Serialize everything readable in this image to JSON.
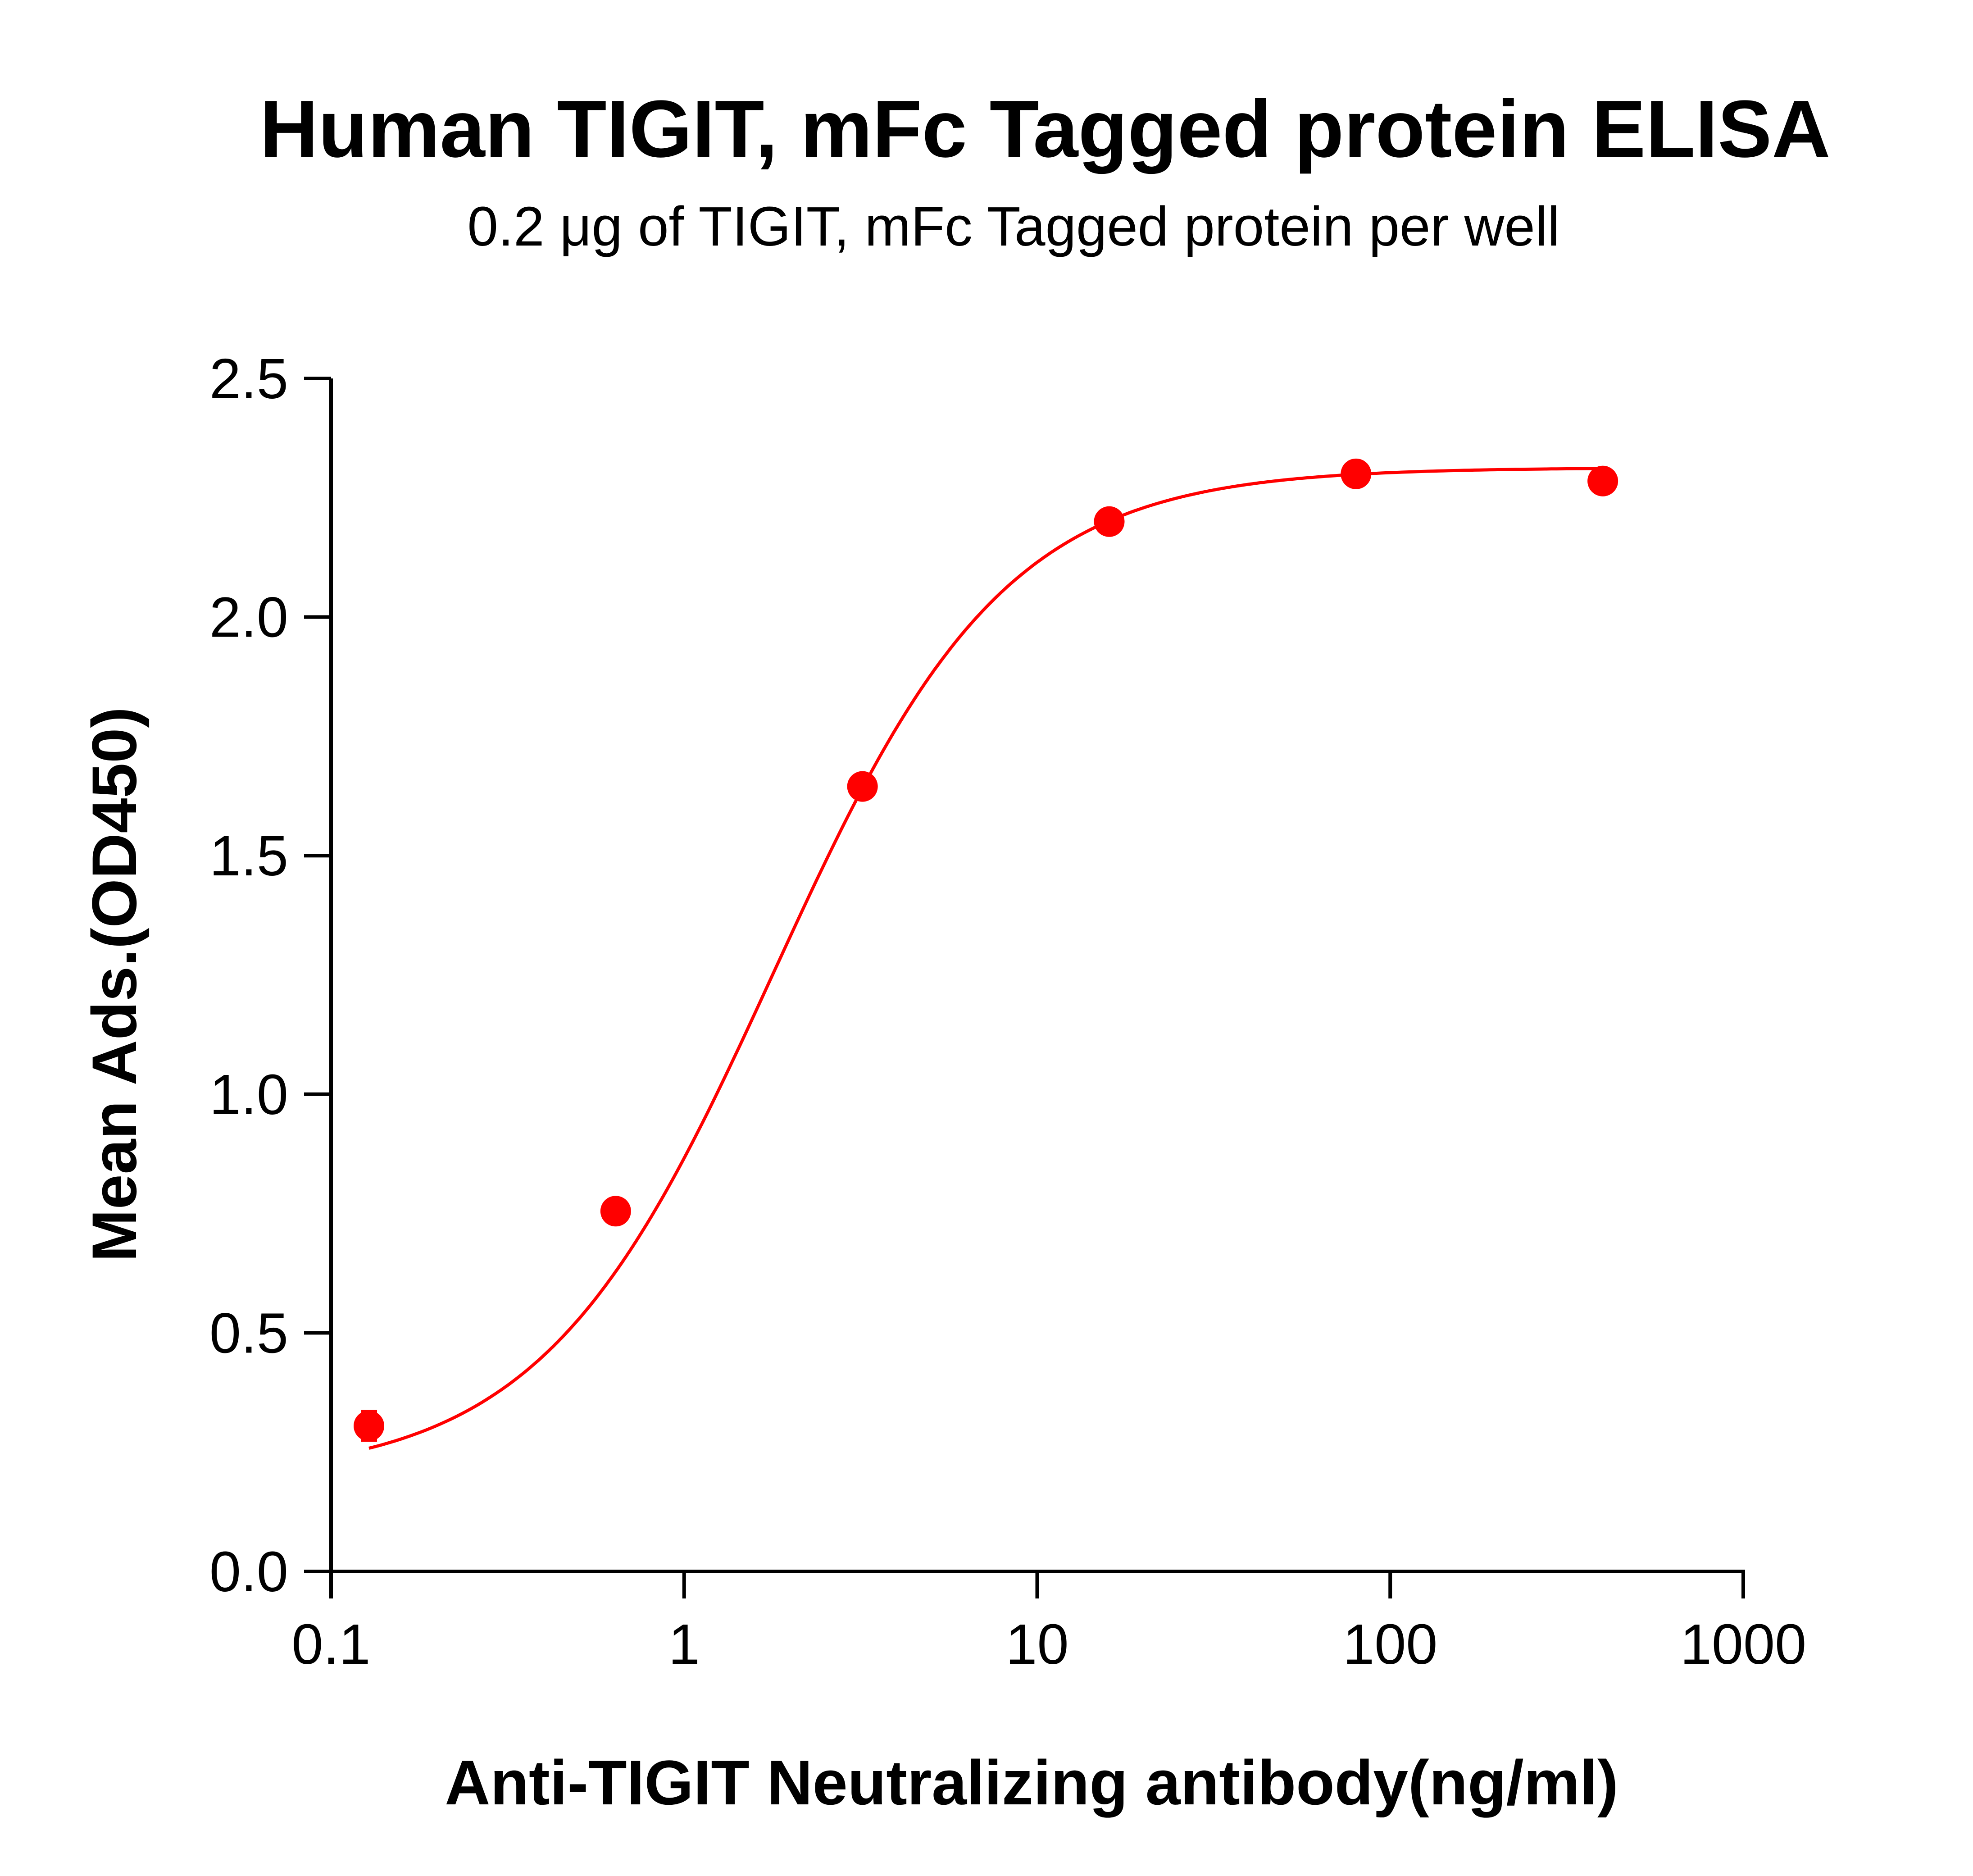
{
  "chart_data": {
    "type": "scatter",
    "title": "Human TIGIT, mFc Tagged protein ELISA",
    "subtitle": "0.2 μg of TIGIT, mFc Tagged protein per well",
    "xlabel": "Anti-TIGIT Neutralizing antibody(ng/ml)",
    "ylabel": "Mean Ads.(OD450)",
    "xscale": "log",
    "xlim": [
      0.1,
      1000
    ],
    "ylim": [
      0,
      2.5
    ],
    "x_ticks": [
      "0.1",
      "1",
      "10",
      "100",
      "1000"
    ],
    "y_ticks": [
      "0.0",
      "0.5",
      "1.0",
      "1.5",
      "2.0",
      "2.5"
    ],
    "grid": false,
    "legend": "none",
    "color": "#ff0000",
    "series": [
      {
        "x": [
          0.128,
          0.64,
          3.2,
          16,
          80,
          400
        ],
        "y": [
          0.305,
          0.755,
          1.645,
          2.2,
          2.3,
          2.285
        ],
        "error": [
          0.03,
          0.02,
          0.015,
          0.015,
          0.015,
          0.015
        ],
        "fit": "4PL sigmoid"
      }
    ]
  }
}
